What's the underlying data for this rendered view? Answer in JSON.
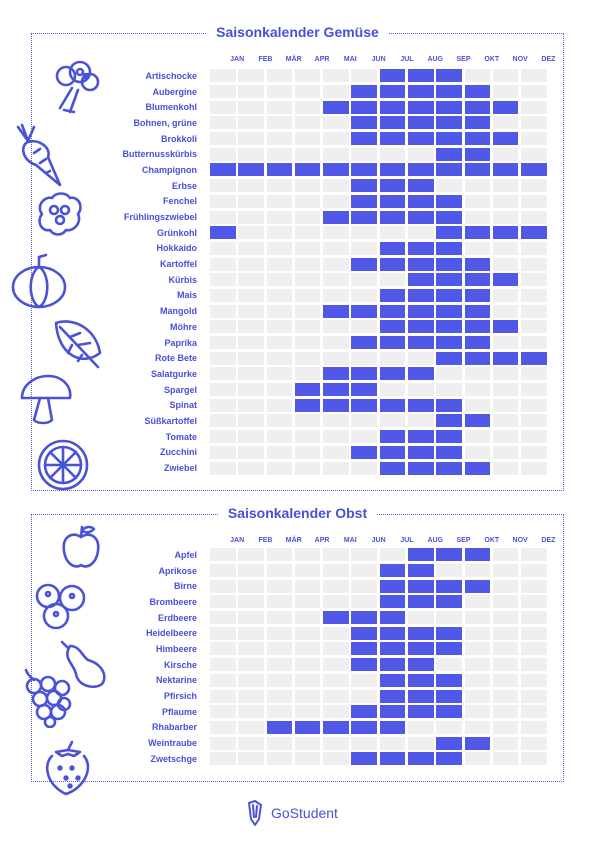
{
  "months": [
    "JAN",
    "FEB",
    "MÄR",
    "APR",
    "MAI",
    "JUN",
    "JUL",
    "AUG",
    "SEP",
    "OKT",
    "NOV",
    "DEZ"
  ],
  "veg": {
    "title": "Saisonkalender Gemüse",
    "items": [
      {
        "label": "Artischocke",
        "months": [
          7,
          8,
          9
        ]
      },
      {
        "label": "Aubergine",
        "months": [
          6,
          7,
          8,
          9,
          10
        ]
      },
      {
        "label": "Blumenkohl",
        "months": [
          5,
          6,
          7,
          8,
          9,
          10,
          11
        ]
      },
      {
        "label": "Bohnen, grüne",
        "months": [
          6,
          7,
          8,
          9,
          10
        ]
      },
      {
        "label": "Brokkoli",
        "months": [
          6,
          7,
          8,
          9,
          10,
          11
        ]
      },
      {
        "label": "Butternusskürbis",
        "months": [
          9,
          10
        ]
      },
      {
        "label": "Champignon",
        "months": [
          1,
          2,
          3,
          4,
          5,
          6,
          7,
          8,
          9,
          10,
          11,
          12
        ]
      },
      {
        "label": "Erbse",
        "months": [
          6,
          7,
          8
        ]
      },
      {
        "label": "Fenchel",
        "months": [
          6,
          7,
          8,
          9
        ]
      },
      {
        "label": "Frühlingszwiebel",
        "months": [
          5,
          6,
          7,
          8,
          9
        ]
      },
      {
        "label": "Grünkohl",
        "months": [
          1,
          9,
          10,
          11,
          12
        ]
      },
      {
        "label": "Hokkaido",
        "months": [
          7,
          8,
          9
        ]
      },
      {
        "label": "Kartoffel",
        "months": [
          6,
          7,
          8,
          9,
          10
        ]
      },
      {
        "label": "Kürbis",
        "months": [
          8,
          9,
          10,
          11
        ]
      },
      {
        "label": "Mais",
        "months": [
          7,
          8,
          9,
          10
        ]
      },
      {
        "label": "Mangold",
        "months": [
          5,
          6,
          7,
          8,
          9,
          10
        ]
      },
      {
        "label": "Möhre",
        "months": [
          7,
          8,
          9,
          10,
          11
        ]
      },
      {
        "label": "Paprika",
        "months": [
          6,
          7,
          8,
          9,
          10
        ]
      },
      {
        "label": "Rote Bete",
        "months": [
          9,
          10,
          11,
          12
        ]
      },
      {
        "label": "Salatgurke",
        "months": [
          5,
          6,
          7,
          8
        ]
      },
      {
        "label": "Spargel",
        "months": [
          4,
          5,
          6
        ]
      },
      {
        "label": "Spinat",
        "months": [
          4,
          5,
          6,
          7,
          8,
          9
        ]
      },
      {
        "label": "Süßkartoffel",
        "months": [
          9,
          10
        ]
      },
      {
        "label": "Tomate",
        "months": [
          7,
          8,
          9
        ]
      },
      {
        "label": "Zucchini",
        "months": [
          6,
          7,
          8,
          9
        ]
      },
      {
        "label": "Zwiebel",
        "months": [
          7,
          8,
          9,
          10
        ]
      }
    ]
  },
  "fruit": {
    "title": "Saisonkalender Obst",
    "items": [
      {
        "label": "Apfel",
        "months": [
          8,
          9,
          10
        ]
      },
      {
        "label": "Aprikose",
        "months": [
          7,
          8
        ]
      },
      {
        "label": "Birne",
        "months": [
          7,
          8,
          9,
          10
        ]
      },
      {
        "label": "Brombeere",
        "months": [
          7,
          8,
          9
        ]
      },
      {
        "label": "Erdbeere",
        "months": [
          5,
          6,
          7
        ]
      },
      {
        "label": "Heidelbeere",
        "months": [
          6,
          7,
          8,
          9
        ]
      },
      {
        "label": "Himbeere",
        "months": [
          6,
          7,
          8,
          9
        ]
      },
      {
        "label": "Kirsche",
        "months": [
          6,
          7,
          8
        ]
      },
      {
        "label": "Nektarine",
        "months": [
          7,
          8,
          9
        ]
      },
      {
        "label": "Pfirsich",
        "months": [
          7,
          8,
          9
        ]
      },
      {
        "label": "Pflaume",
        "months": [
          6,
          7,
          8,
          9
        ]
      },
      {
        "label": "Rhabarber",
        "months": [
          3,
          4,
          5,
          6,
          7
        ]
      },
      {
        "label": "Weintraube",
        "months": [
          9,
          10
        ]
      },
      {
        "label": "Zwetschge",
        "months": [
          6,
          7,
          8,
          9
        ]
      }
    ]
  },
  "brand": {
    "name": "GoStudent"
  },
  "colors": {
    "accent": "#5058e6",
    "empty": "#efefef",
    "text": "#4750d9"
  },
  "icons": {
    "veg": [
      "artichoke-broccoli-icon",
      "carrot-icon",
      "cauliflower-icon",
      "pumpkin-icon",
      "chard-leaf-icon",
      "mushroom-icon",
      "citrus-slice-icon"
    ],
    "fruit": [
      "apple-icon",
      "blueberries-icon",
      "pear-icon",
      "grapes-icon",
      "strawberry-icon"
    ]
  }
}
